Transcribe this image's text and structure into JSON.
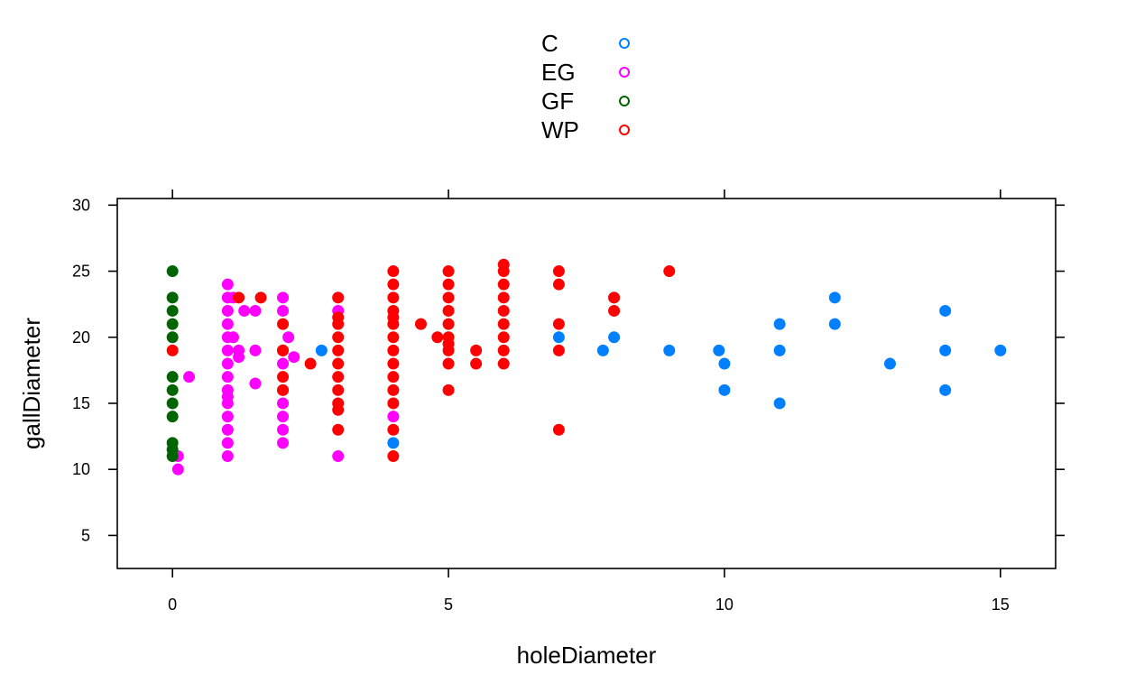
{
  "chart_data": {
    "type": "scatter",
    "title": "",
    "xlabel": "holeDiameter",
    "ylabel": "gallDiameter",
    "xlim": [
      -1,
      16
    ],
    "ylim": [
      2.5,
      30.5
    ],
    "x_ticks": [
      0,
      5,
      10,
      15
    ],
    "y_ticks": [
      5,
      10,
      15,
      20,
      25,
      30
    ],
    "grid": false,
    "legend_position": "top-center",
    "series": [
      {
        "name": "C",
        "color": "#0080FF",
        "points": [
          [
            2.7,
            19
          ],
          [
            4,
            12
          ],
          [
            7,
            20
          ],
          [
            7.8,
            19
          ],
          [
            8,
            20
          ],
          [
            8,
            23
          ],
          [
            9,
            19
          ],
          [
            9.9,
            19
          ],
          [
            10,
            18
          ],
          [
            10,
            16
          ],
          [
            11,
            21
          ],
          [
            11,
            19
          ],
          [
            11,
            15
          ],
          [
            12,
            23
          ],
          [
            12,
            21
          ],
          [
            13,
            18
          ],
          [
            14,
            22
          ],
          [
            14,
            19
          ],
          [
            14,
            16
          ],
          [
            15,
            19
          ]
        ]
      },
      {
        "name": "EG",
        "color": "#FF00FF",
        "points": [
          [
            0.1,
            11
          ],
          [
            0.1,
            10
          ],
          [
            0.3,
            17
          ],
          [
            1,
            24
          ],
          [
            1,
            23
          ],
          [
            1,
            22
          ],
          [
            1,
            21
          ],
          [
            1,
            20
          ],
          [
            1,
            19
          ],
          [
            1,
            18
          ],
          [
            1,
            17
          ],
          [
            1,
            16
          ],
          [
            1,
            15.5
          ],
          [
            1,
            15
          ],
          [
            1,
            14
          ],
          [
            1,
            13
          ],
          [
            1,
            12
          ],
          [
            1,
            11
          ],
          [
            1.1,
            20
          ],
          [
            1.1,
            23
          ],
          [
            1.2,
            19
          ],
          [
            1.2,
            18.5
          ],
          [
            1.3,
            22
          ],
          [
            1.5,
            22
          ],
          [
            1.5,
            19
          ],
          [
            1.5,
            16.5
          ],
          [
            2,
            23
          ],
          [
            2,
            22
          ],
          [
            2,
            19
          ],
          [
            2,
            18
          ],
          [
            2,
            16
          ],
          [
            2,
            15
          ],
          [
            2,
            14
          ],
          [
            2,
            13
          ],
          [
            2,
            12
          ],
          [
            2.1,
            20
          ],
          [
            2.2,
            18.5
          ],
          [
            3,
            22
          ],
          [
            3,
            11
          ],
          [
            4,
            14
          ]
        ]
      },
      {
        "name": "GF",
        "color": "#006400",
        "points": [
          [
            0,
            25
          ],
          [
            0,
            23
          ],
          [
            0,
            22
          ],
          [
            0,
            21
          ],
          [
            0,
            20
          ],
          [
            0,
            17
          ],
          [
            0,
            16
          ],
          [
            0,
            15
          ],
          [
            0,
            14
          ],
          [
            0,
            12
          ],
          [
            0,
            11.5
          ],
          [
            0,
            11
          ]
        ]
      },
      {
        "name": "WP",
        "color": "#FF0000",
        "points": [
          [
            0,
            19
          ],
          [
            1.2,
            23
          ],
          [
            1.6,
            23
          ],
          [
            2,
            21
          ],
          [
            2,
            19
          ],
          [
            2,
            17
          ],
          [
            2,
            16
          ],
          [
            2.5,
            18
          ],
          [
            3,
            23
          ],
          [
            3,
            21.5
          ],
          [
            3,
            21
          ],
          [
            3,
            20
          ],
          [
            3,
            19
          ],
          [
            3,
            18
          ],
          [
            3,
            17
          ],
          [
            3,
            16
          ],
          [
            3,
            15
          ],
          [
            3,
            14.5
          ],
          [
            3,
            13
          ],
          [
            4,
            25
          ],
          [
            4,
            24
          ],
          [
            4,
            23
          ],
          [
            4,
            22
          ],
          [
            4,
            21.5
          ],
          [
            4,
            21
          ],
          [
            4,
            20
          ],
          [
            4,
            19
          ],
          [
            4,
            18
          ],
          [
            4,
            17
          ],
          [
            4,
            16
          ],
          [
            4,
            15
          ],
          [
            4,
            13
          ],
          [
            4,
            11
          ],
          [
            4.5,
            21
          ],
          [
            4.8,
            20
          ],
          [
            5,
            25
          ],
          [
            5,
            24
          ],
          [
            5,
            23
          ],
          [
            5,
            22
          ],
          [
            5,
            21
          ],
          [
            5,
            20
          ],
          [
            5,
            19.5
          ],
          [
            5,
            19
          ],
          [
            5,
            18
          ],
          [
            5,
            16
          ],
          [
            5.5,
            19
          ],
          [
            5.5,
            18
          ],
          [
            6,
            25.5
          ],
          [
            6,
            25
          ],
          [
            6,
            24
          ],
          [
            6,
            23
          ],
          [
            6,
            22
          ],
          [
            6,
            21
          ],
          [
            6,
            20
          ],
          [
            6,
            19
          ],
          [
            6,
            18
          ],
          [
            7,
            25
          ],
          [
            7,
            24
          ],
          [
            7,
            21
          ],
          [
            7,
            19
          ],
          [
            7,
            13
          ],
          [
            8,
            23
          ],
          [
            8,
            22
          ],
          [
            9,
            25
          ]
        ]
      }
    ]
  }
}
